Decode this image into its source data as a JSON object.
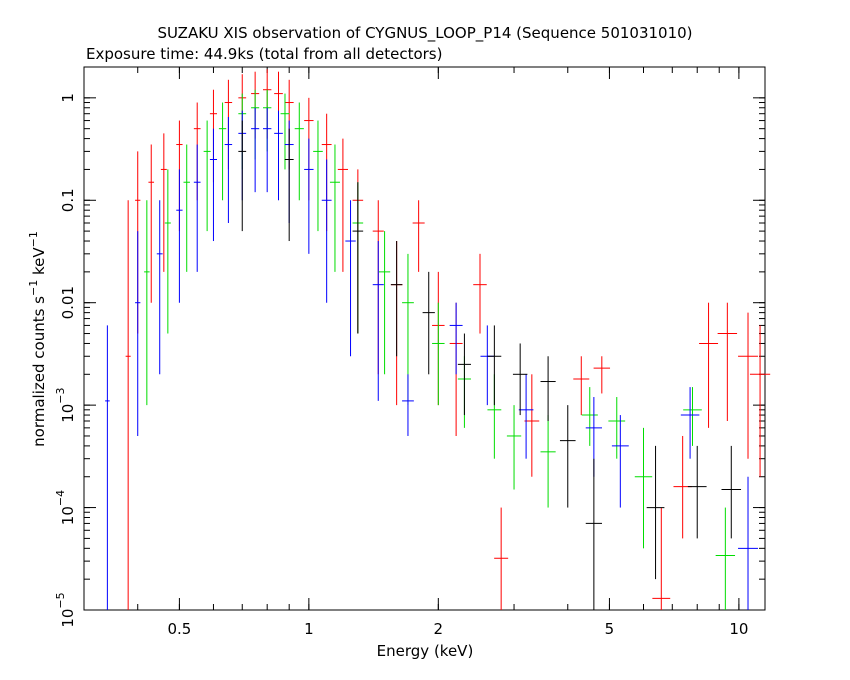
{
  "chart_data": {
    "type": "scatter",
    "title": "SUZAKU XIS observation of CYGNUS_LOOP_P14 (Sequence 501031010)",
    "subtitle": "Exposure time: 44.9ks (total from all detectors)",
    "xlabel": "Energy (keV)",
    "ylabel": {
      "prefix": "normalized counts s",
      "mid": " keV",
      "sup": "−1"
    },
    "xscale": "log",
    "yscale": "log",
    "xlim": [
      0.3,
      11.5
    ],
    "ylim": [
      1e-05,
      2
    ],
    "grid": false,
    "x_ticks": [
      {
        "value": 0.5,
        "label": "0.5"
      },
      {
        "value": 1,
        "label": "1"
      },
      {
        "value": 2,
        "label": "2"
      },
      {
        "value": 5,
        "label": "5"
      },
      {
        "value": 10,
        "label": "10"
      }
    ],
    "y_ticks": [
      {
        "value": 1,
        "label": "1",
        "sup": ""
      },
      {
        "value": 0.1,
        "label": "0.1",
        "sup": ""
      },
      {
        "value": 0.01,
        "label": "0.01",
        "sup": ""
      },
      {
        "value": 0.001,
        "label": "10",
        "sup": "−3"
      },
      {
        "value": 0.0001,
        "label": "10",
        "sup": "−4"
      },
      {
        "value": 1e-05,
        "label": "10",
        "sup": "−5"
      }
    ],
    "series": [
      {
        "color": "#ff0000",
        "points": [
          [
            0.38,
            0.003,
            1e-05,
            0.1
          ],
          [
            0.4,
            0.1,
            0.005,
            0.3
          ],
          [
            0.43,
            0.15,
            0.01,
            0.35
          ],
          [
            0.46,
            0.2,
            0.02,
            0.45
          ],
          [
            0.5,
            0.35,
            0.05,
            0.6
          ],
          [
            0.55,
            0.5,
            0.1,
            0.9
          ],
          [
            0.6,
            0.7,
            0.15,
            1.2
          ],
          [
            0.65,
            0.9,
            0.2,
            1.5
          ],
          [
            0.7,
            1.0,
            0.3,
            1.7
          ],
          [
            0.75,
            1.1,
            0.4,
            1.8
          ],
          [
            0.8,
            1.2,
            0.4,
            1.9
          ],
          [
            0.85,
            1.1,
            0.3,
            1.8
          ],
          [
            0.9,
            0.9,
            0.2,
            1.5
          ],
          [
            1.0,
            0.6,
            0.1,
            1.0
          ],
          [
            1.1,
            0.35,
            0.05,
            0.7
          ],
          [
            1.2,
            0.2,
            0.02,
            0.4
          ],
          [
            1.3,
            0.1,
            0.005,
            0.2
          ],
          [
            1.45,
            0.05,
            0.002,
            0.1
          ],
          [
            1.6,
            0.015,
            0.001,
            0.04
          ],
          [
            1.8,
            0.06,
            0.02,
            0.1
          ],
          [
            2.0,
            0.006,
            0.001,
            0.02
          ],
          [
            2.2,
            0.004,
            0.0005,
            0.01
          ],
          [
            2.5,
            0.015,
            0.005,
            0.03
          ],
          [
            2.8,
            3.2e-05,
            1e-05,
            0.0001
          ],
          [
            3.3,
            0.0007,
            0.0002,
            0.002
          ],
          [
            4.3,
            0.0018,
            0.0008,
            0.003
          ],
          [
            4.8,
            0.0023,
            0.0013,
            0.003
          ],
          [
            6.6,
            1.3e-05,
            1e-05,
            0.0001
          ],
          [
            7.4,
            0.00016,
            5e-05,
            0.0005
          ],
          [
            8.5,
            0.004,
            0.0006,
            0.01
          ],
          [
            9.4,
            0.005,
            0.0007,
            0.01
          ],
          [
            10.5,
            0.003,
            0.0003,
            0.008
          ],
          [
            11.2,
            0.002,
            0.0002,
            0.006
          ]
        ]
      },
      {
        "color": "#00dd00",
        "points": [
          [
            0.42,
            0.02,
            0.001,
            0.1
          ],
          [
            0.47,
            0.06,
            0.005,
            0.2
          ],
          [
            0.52,
            0.15,
            0.02,
            0.35
          ],
          [
            0.58,
            0.3,
            0.05,
            0.6
          ],
          [
            0.63,
            0.5,
            0.1,
            0.9
          ],
          [
            0.7,
            0.7,
            0.2,
            1.1
          ],
          [
            0.75,
            0.8,
            0.25,
            1.2
          ],
          [
            0.8,
            0.8,
            0.3,
            1.2
          ],
          [
            0.88,
            0.7,
            0.2,
            1.1
          ],
          [
            0.95,
            0.5,
            0.1,
            0.9
          ],
          [
            1.05,
            0.3,
            0.05,
            0.6
          ],
          [
            1.15,
            0.15,
            0.02,
            0.35
          ],
          [
            1.3,
            0.06,
            0.005,
            0.15
          ],
          [
            1.5,
            0.02,
            0.002,
            0.05
          ],
          [
            1.7,
            0.01,
            0.001,
            0.03
          ],
          [
            2.0,
            0.004,
            0.001,
            0.01
          ],
          [
            2.3,
            0.0018,
            0.0006,
            0.003
          ],
          [
            2.7,
            0.0009,
            0.0003,
            0.002
          ],
          [
            3.0,
            0.0005,
            0.00015,
            0.001
          ],
          [
            3.6,
            0.00035,
            0.0001,
            0.0008
          ],
          [
            4.5,
            0.0008,
            0.0004,
            0.0015
          ],
          [
            5.2,
            0.0007,
            0.0003,
            0.0012
          ],
          [
            6.0,
            0.0002,
            4e-05,
            0.0006
          ],
          [
            7.8,
            0.0009,
            0.0004,
            0.0015
          ],
          [
            9.3,
            3.4e-05,
            1e-05,
            0.0001
          ]
        ]
      },
      {
        "color": "#0000ff",
        "points": [
          [
            0.34,
            0.0011,
            1e-05,
            0.006
          ],
          [
            0.4,
            0.01,
            0.0005,
            0.05
          ],
          [
            0.45,
            0.03,
            0.002,
            0.1
          ],
          [
            0.5,
            0.08,
            0.01,
            0.2
          ],
          [
            0.55,
            0.15,
            0.02,
            0.35
          ],
          [
            0.6,
            0.25,
            0.04,
            0.5
          ],
          [
            0.65,
            0.35,
            0.06,
            0.65
          ],
          [
            0.7,
            0.45,
            0.1,
            0.75
          ],
          [
            0.75,
            0.5,
            0.12,
            0.8
          ],
          [
            0.8,
            0.5,
            0.12,
            0.8
          ],
          [
            0.85,
            0.45,
            0.1,
            0.75
          ],
          [
            0.9,
            0.35,
            0.06,
            0.6
          ],
          [
            1.0,
            0.2,
            0.03,
            0.4
          ],
          [
            1.1,
            0.1,
            0.01,
            0.25
          ],
          [
            1.25,
            0.04,
            0.003,
            0.1
          ],
          [
            1.45,
            0.015,
            0.0011,
            0.04
          ],
          [
            1.7,
            0.0011,
            0.0005,
            0.002
          ],
          [
            2.2,
            0.006,
            0.002,
            0.01
          ],
          [
            2.6,
            0.003,
            0.001,
            0.006
          ],
          [
            3.2,
            0.0009,
            0.0003,
            0.002
          ],
          [
            4.6,
            0.0006,
            0.0002,
            0.0012
          ],
          [
            5.3,
            0.0004,
            0.0001,
            0.0008
          ],
          [
            7.7,
            0.0008,
            0.0003,
            0.0015
          ],
          [
            10.5,
            4e-05,
            1e-05,
            0.0002
          ]
        ]
      },
      {
        "color": "#000000",
        "points": [
          [
            0.7,
            0.3,
            0.05,
            0.6
          ],
          [
            0.9,
            0.25,
            0.04,
            0.5
          ],
          [
            1.3,
            0.05,
            0.005,
            0.15
          ],
          [
            1.6,
            0.015,
            0.003,
            0.04
          ],
          [
            1.9,
            0.008,
            0.002,
            0.02
          ],
          [
            2.3,
            0.0025,
            0.0008,
            0.005
          ],
          [
            2.7,
            0.003,
            0.001,
            0.006
          ],
          [
            3.1,
            0.002,
            0.0008,
            0.004
          ],
          [
            3.6,
            0.0017,
            0.0007,
            0.003
          ],
          [
            4.0,
            0.00045,
            0.0001,
            0.001
          ],
          [
            4.6,
            7e-05,
            1e-05,
            0.0003
          ],
          [
            6.4,
            0.0001,
            2e-05,
            0.0004
          ],
          [
            8.0,
            0.00016,
            5e-05,
            0.0004
          ],
          [
            9.6,
            0.00015,
            5e-05,
            0.0004
          ]
        ]
      }
    ]
  }
}
